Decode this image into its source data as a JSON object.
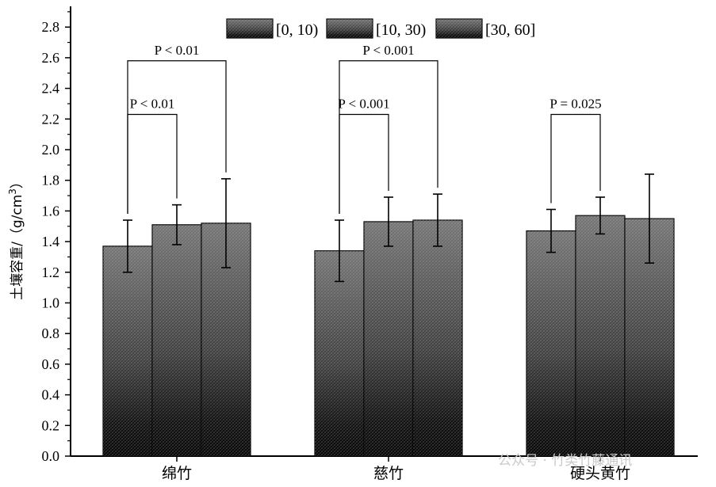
{
  "chart_data": {
    "type": "bar",
    "categories": [
      "绵竹",
      "慈竹",
      "硬头黄竹"
    ],
    "ylabel_main": "土壤容重/（g/cm",
    "ylabel_sup": "3",
    "ylabel_close": "）",
    "ylim": [
      0,
      2.9
    ],
    "yticks": [
      "0.0",
      "0.2",
      "0.4",
      "0.6",
      "0.8",
      "1.0",
      "1.2",
      "1.4",
      "1.6",
      "1.8",
      "2.0",
      "2.2",
      "2.4",
      "2.6",
      "2.8"
    ],
    "series": [
      {
        "name": "[0, 10)",
        "values": [
          1.37,
          1.34,
          1.47
        ],
        "errors": [
          0.17,
          0.2,
          0.14
        ]
      },
      {
        "name": "[10, 30)",
        "values": [
          1.51,
          1.53,
          1.57
        ],
        "errors": [
          0.13,
          0.16,
          0.12
        ]
      },
      {
        "name": "[30, 60]",
        "values": [
          1.52,
          1.54,
          1.55
        ],
        "errors": [
          0.29,
          0.17,
          0.29
        ]
      }
    ],
    "legend_position": "top",
    "annotations": [
      {
        "category": 0,
        "from": 0,
        "to": 1,
        "text": "P < 0.01",
        "level": 2.23
      },
      {
        "category": 0,
        "from": 0,
        "to": 2,
        "text": "P < 0.01",
        "level": 2.58
      },
      {
        "category": 1,
        "from": 0,
        "to": 1,
        "text": "P < 0.001",
        "level": 2.23
      },
      {
        "category": 1,
        "from": 0,
        "to": 2,
        "text": "P < 0.001",
        "level": 2.58
      },
      {
        "category": 2,
        "from": 0,
        "to": 1,
        "text": "P = 0.025",
        "level": 2.23
      }
    ]
  },
  "watermark": "公众号 · 竹类竹藤通讯",
  "colors": {
    "bar_top": "#6e6e6e",
    "bar_bottom": "#000000",
    "axis": "#000000"
  }
}
